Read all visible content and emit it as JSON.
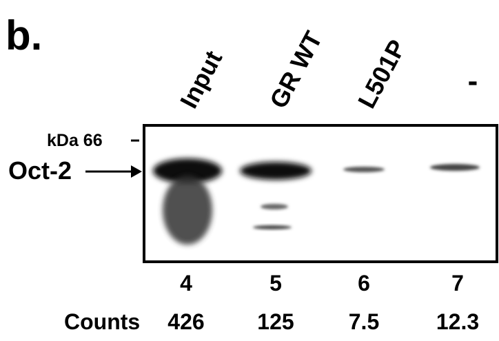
{
  "panel_label": "b.",
  "marker_label": "kDa 66",
  "band_label": "Oct-2",
  "counts_label": "Counts",
  "lanes": [
    {
      "label": "Input",
      "number": "4",
      "count": "426"
    },
    {
      "label": "GR WT",
      "number": "5",
      "count": "125"
    },
    {
      "label": "L501P",
      "number": "6",
      "count": "7.5"
    },
    {
      "label": "-",
      "number": "7",
      "count": "12.3"
    }
  ]
}
